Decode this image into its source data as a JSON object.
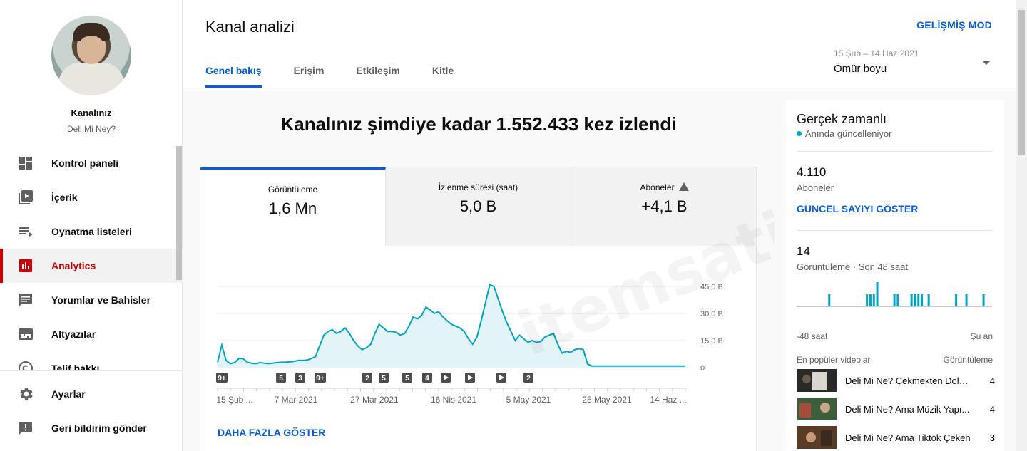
{
  "channel": {
    "name": "Kanalınız",
    "subtitle": "Deli Mi Ney?"
  },
  "sidebar": {
    "items": [
      {
        "label": "Kontrol paneli",
        "icon": "dashboard-icon"
      },
      {
        "label": "İçerik",
        "icon": "content-icon"
      },
      {
        "label": "Oynatma listeleri",
        "icon": "playlist-icon"
      },
      {
        "label": "Analytics",
        "icon": "analytics-icon",
        "active": true
      },
      {
        "label": "Yorumlar ve Bahisler",
        "icon": "comments-icon"
      },
      {
        "label": "Altyazılar",
        "icon": "subtitles-icon"
      },
      {
        "label": "Telif hakkı",
        "icon": "copyright-icon"
      }
    ],
    "bottom": [
      {
        "label": "Ayarlar",
        "icon": "gear-icon"
      },
      {
        "label": "Geri bildirim gönder",
        "icon": "feedback-icon"
      }
    ]
  },
  "header": {
    "title": "Kanal analizi",
    "advanced_label": "GELİŞMİŞ MOD",
    "tabs": [
      "Genel bakış",
      "Erişim",
      "Etkileşim",
      "Kitle"
    ],
    "date_range": "15 Şub – 14 Haz 2021",
    "date_value": "Ömür boyu"
  },
  "main": {
    "headline": "Kanalınız şimdiye kadar 1.552.433 kez izlendi",
    "metrics": [
      {
        "label": "Görüntüleme",
        "value": "1,6 Mn"
      },
      {
        "label": "İzlenme süresi (saat)",
        "value": "5,0 B"
      },
      {
        "label": "Aboneler",
        "value": "+4,1 B"
      }
    ],
    "more_label": "DAHA FAZLA GÖSTER"
  },
  "chart_data": {
    "type": "area",
    "x_ticks": [
      "15 Şub ...",
      "7 Mar 2021",
      "27 Mar 2021",
      "16 Nis 2021",
      "5 May 2021",
      "25 May 2021",
      "14 Haz ..."
    ],
    "y_ticks": [
      "45,0 B",
      "30,0 B",
      "15,0 B",
      "0"
    ],
    "ylim": [
      0,
      45000
    ],
    "values": [
      3000,
      12500,
      4000,
      2200,
      2800,
      5000,
      5000,
      3000,
      2500,
      2200,
      2800,
      2500,
      2200,
      2500,
      2800,
      3000,
      3000,
      3200,
      3500,
      4000,
      4000,
      4200,
      5000,
      6000,
      12000,
      18000,
      20000,
      21000,
      19000,
      20000,
      22000,
      19000,
      15000,
      12000,
      10000,
      11000,
      13000,
      19000,
      24000,
      22000,
      20000,
      20000,
      19500,
      18000,
      19000,
      23000,
      28000,
      27000,
      29000,
      33500,
      32000,
      30000,
      31000,
      28000,
      26000,
      24000,
      23000,
      22000,
      20000,
      16000,
      13000,
      17000,
      26000,
      36000,
      46000,
      45000,
      38000,
      31000,
      25000,
      20000,
      15000,
      18000,
      16000,
      14000,
      15000,
      14000,
      14500,
      17000,
      18000,
      19000,
      13000,
      8000,
      9000,
      8500,
      10000,
      10500,
      10000,
      2000,
      900,
      900,
      900,
      900,
      900,
      900,
      900,
      900,
      900,
      900,
      900,
      900,
      900,
      900,
      900,
      900,
      900,
      900,
      900,
      900,
      900,
      900,
      900
    ],
    "markers": [
      "9+",
      "5",
      "3",
      "9+",
      "2",
      "5",
      "5",
      "4",
      "play",
      "play",
      "play",
      "2"
    ],
    "color": "#00a4c4",
    "fill": "#e3f4f8"
  },
  "realtime": {
    "title": "Gerçek zamanlı",
    "subtitle": "Anında güncelleniyor",
    "subscribers": "4.110",
    "subscribers_label": "Aboneler",
    "show_count_label": "GÜNCEL SAYIYI GÖSTER",
    "views": "14",
    "views_label": "Görüntüleme · Son 48 saat",
    "axis_left": "-48 saat",
    "axis_right": "Şu an",
    "mini_values": [
      0,
      0,
      0,
      0,
      0,
      0,
      0,
      0,
      0,
      1,
      0,
      0,
      0,
      0,
      0,
      0,
      0,
      0,
      0,
      0,
      1,
      1,
      1,
      2,
      0,
      0,
      0,
      0,
      1,
      1,
      0,
      0,
      0,
      1,
      1,
      1,
      1,
      0,
      1,
      0,
      0,
      0,
      0,
      0,
      0,
      0,
      1,
      0,
      0,
      1,
      0,
      0,
      0,
      0,
      1,
      0,
      0
    ],
    "popular_header": "En popüler videolar",
    "popular_col": "Görüntüleme",
    "videos": [
      {
        "title": "Deli Mi Ne? Çekmekten Dola...",
        "views": "4"
      },
      {
        "title": "Deli Mi Ne? Ama Müzik Yapı...",
        "views": "4"
      },
      {
        "title": "Deli Mi Ne? Ama Tiktok Çeken",
        "views": "3"
      }
    ]
  }
}
